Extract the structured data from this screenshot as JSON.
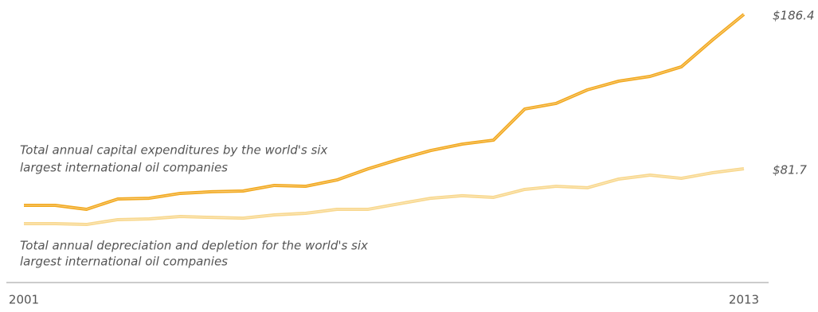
{
  "chart_data": {
    "type": "line",
    "categories": [
      "2001",
      null,
      null,
      null,
      null,
      null,
      null,
      null,
      null,
      null,
      null,
      null,
      null,
      null,
      null,
      null,
      null,
      null,
      null,
      null,
      null,
      null,
      null,
      "2013"
    ],
    "series": [
      {
        "name": null,
        "color": "#f2a81d",
        "values": [
          56.9,
          56.9,
          54.2,
          61.2,
          61.7,
          65.0,
          66.1,
          66.6,
          70.4,
          69.8,
          74.1,
          81.7,
          88.2,
          94.1,
          98.4,
          101.1,
          122.2,
          126.0,
          135.2,
          141.1,
          144.3,
          150.8,
          169.1,
          186.4
        ],
        "value_labels": [
          null,
          null,
          null,
          null,
          null,
          null,
          null,
          null,
          null,
          null,
          null,
          null,
          null,
          null,
          null,
          null,
          null,
          null,
          null,
          null,
          null,
          null,
          null,
          "$186.4"
        ]
      },
      {
        "name": null,
        "color": "#f8d78c",
        "values": [
          44.5,
          44.5,
          43.9,
          47.2,
          47.7,
          49.3,
          48.7,
          48.2,
          50.4,
          51.5,
          54.2,
          54.2,
          58.0,
          61.7,
          63.4,
          62.3,
          67.7,
          69.8,
          68.8,
          74.7,
          77.4,
          75.2,
          79.0,
          81.7
        ],
        "value_labels": [
          null,
          null,
          null,
          null,
          null,
          null,
          null,
          null,
          null,
          null,
          null,
          null,
          null,
          null,
          null,
          null,
          null,
          null,
          null,
          null,
          null,
          null,
          null,
          "$81.7"
        ]
      }
    ],
    "annotations": [
      [
        "Total annual capital expenditures by the world's six",
        "largest international oil companies"
      ],
      [
        "Total annual depreciation and depletion for the world's six",
        "largest international oil companies"
      ]
    ],
    "ylim": [
      0,
      200
    ]
  }
}
